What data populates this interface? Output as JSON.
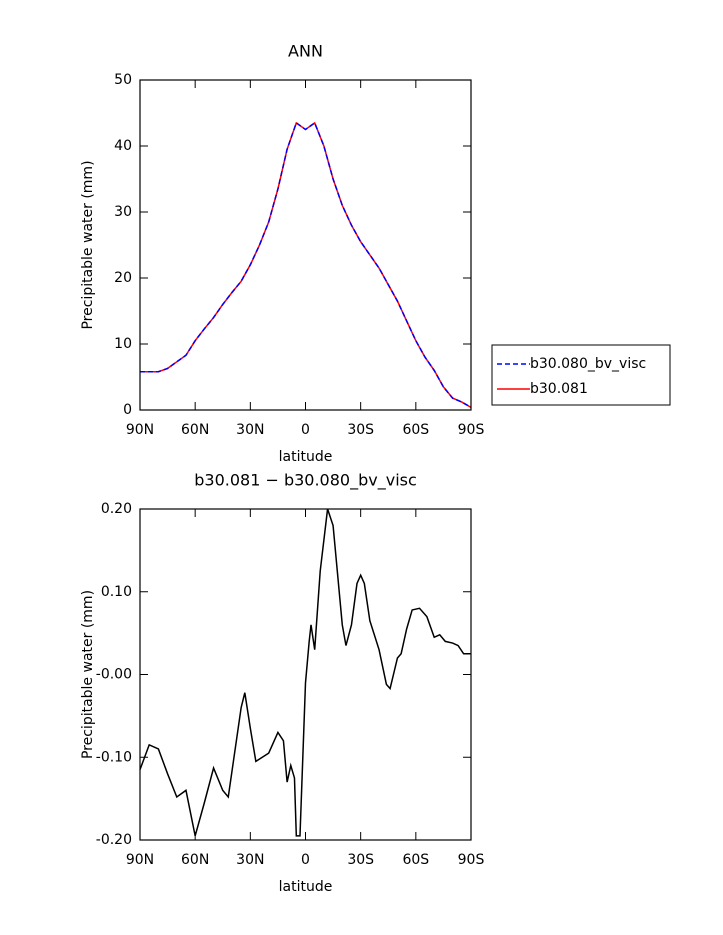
{
  "chart_data": [
    {
      "type": "line",
      "title": "ANN",
      "xlabel": "latitude",
      "ylabel": "Precipitable water (mm)",
      "x": [
        90,
        85,
        80,
        75,
        70,
        65,
        60,
        55,
        50,
        45,
        40,
        35,
        30,
        25,
        20,
        15,
        10,
        5,
        0,
        -5,
        -10,
        -15,
        -20,
        -25,
        -30,
        -35,
        -40,
        -45,
        -50,
        -55,
        -60,
        -65,
        -70,
        -75,
        -80,
        -85,
        -90
      ],
      "series": [
        {
          "name": "b30.080_bv_visc",
          "color": "#0000ff",
          "dash": true,
          "values": [
            5.8,
            5.8,
            5.8,
            6.3,
            7.3,
            8.3,
            10.5,
            12.3,
            14.0,
            16.0,
            17.8,
            19.5,
            22.0,
            25.0,
            28.5,
            33.5,
            39.5,
            43.5,
            42.5,
            43.5,
            40.0,
            35.0,
            31.0,
            28.0,
            25.5,
            23.5,
            21.5,
            19.0,
            16.5,
            13.5,
            10.5,
            8.0,
            6.0,
            3.5,
            1.8,
            1.2,
            0.4
          ]
        },
        {
          "name": "b30.081",
          "color": "#ff0000",
          "dash": false,
          "values": [
            5.8,
            5.8,
            5.8,
            6.3,
            7.3,
            8.3,
            10.5,
            12.3,
            14.0,
            16.0,
            17.8,
            19.5,
            22.0,
            25.0,
            28.5,
            33.5,
            39.5,
            43.5,
            42.5,
            43.5,
            40.0,
            35.0,
            31.0,
            28.0,
            25.5,
            23.5,
            21.5,
            19.0,
            16.5,
            13.5,
            10.5,
            8.0,
            6.0,
            3.5,
            1.8,
            1.2,
            0.4
          ]
        }
      ],
      "xlim": [
        90,
        -90
      ],
      "xticks": [
        {
          "value": 90,
          "label": "90N"
        },
        {
          "value": 60,
          "label": "60N"
        },
        {
          "value": 30,
          "label": "30N"
        },
        0,
        {
          "value": -30,
          "label": "30S"
        },
        {
          "value": -60,
          "label": "60S"
        },
        {
          "value": -90,
          "label": "90S"
        }
      ],
      "ylim": [
        0,
        50
      ],
      "yticks": [
        0,
        10,
        20,
        30,
        40,
        50
      ],
      "legend": "outside right"
    },
    {
      "type": "line",
      "title": "b30.081 − b30.080_bv_visc",
      "xlabel": "latitude",
      "ylabel": "Precipitable water (mm)",
      "x": [
        90,
        85,
        80,
        75,
        70,
        65,
        60,
        55,
        50,
        45,
        42,
        35,
        33,
        30,
        27,
        20,
        15,
        12,
        10,
        8,
        6,
        5,
        3,
        0,
        -2,
        -3,
        -5,
        -8,
        -12,
        -15,
        -20,
        -22,
        -25,
        -28,
        -30,
        -32,
        -35,
        -40,
        -44,
        -46,
        -50,
        -52,
        -55,
        -58,
        -62,
        -66,
        -70,
        -73,
        -76,
        -80,
        -83,
        -86,
        -90
      ],
      "series": [
        {
          "color": "#000000",
          "dash": false,
          "values": [
            -0.115,
            -0.085,
            -0.09,
            -0.12,
            -0.148,
            -0.14,
            -0.195,
            -0.155,
            -0.113,
            -0.14,
            -0.148,
            -0.04,
            -0.022,
            -0.065,
            -0.105,
            -0.095,
            -0.07,
            -0.08,
            -0.13,
            -0.11,
            -0.125,
            -0.195,
            -0.195,
            -0.01,
            0.04,
            0.06,
            0.03,
            0.125,
            0.2,
            0.18,
            0.06,
            0.035,
            0.06,
            0.11,
            0.12,
            0.11,
            0.065,
            0.03,
            -0.012,
            -0.017,
            0.02,
            0.025,
            0.055,
            0.078,
            0.08,
            0.07,
            0.045,
            0.048,
            0.04,
            0.038,
            0.035,
            0.025,
            0.025
          ]
        }
      ],
      "xlim": [
        90,
        -90
      ],
      "xticks": [
        {
          "value": 90,
          "label": "90N"
        },
        {
          "value": 60,
          "label": "60N"
        },
        {
          "value": 30,
          "label": "30N"
        },
        0,
        {
          "value": -30,
          "label": "30S"
        },
        {
          "value": -60,
          "label": "60S"
        },
        {
          "value": -90,
          "label": "90S"
        }
      ],
      "ylim": [
        -0.2,
        0.2
      ],
      "yticks": [
        {
          "value": -0.2,
          "label": "-0.20"
        },
        {
          "value": -0.1,
          "label": "-0.10"
        },
        {
          "value": 0,
          "label": "-0.00"
        },
        {
          "value": 0.1,
          "label": "0.10"
        },
        {
          "value": 0.2,
          "label": "0.20"
        }
      ]
    }
  ]
}
